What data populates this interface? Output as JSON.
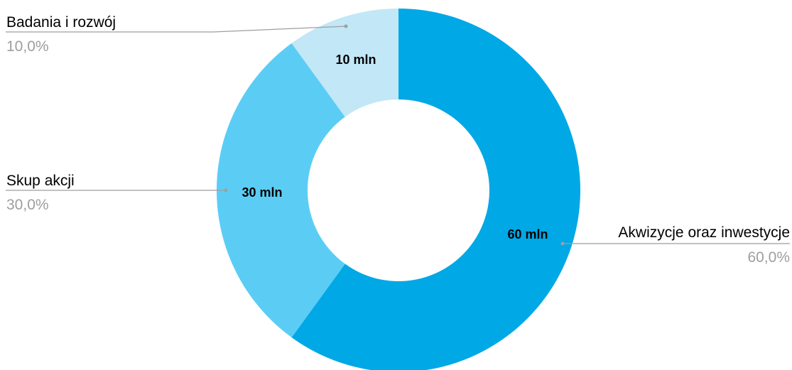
{
  "chart_data": {
    "type": "pie",
    "donut": true,
    "title": "",
    "slices": [
      {
        "label": "Akwizycje oraz inwestycje",
        "value": 60,
        "value_label": "60 mln",
        "percent_label": "60,0%",
        "color": "#00a8e6"
      },
      {
        "label": "Skup akcji",
        "value": 30,
        "value_label": "30 mln",
        "percent_label": "30,0%",
        "color": "#5bcdf5"
      },
      {
        "label": "Badania i rozwój",
        "value": 10,
        "value_label": "10 mln",
        "percent_label": "10,0%",
        "color": "#c2e7f6"
      }
    ],
    "start_angle": "top",
    "direction": "clockwise",
    "legend": "callouts"
  }
}
